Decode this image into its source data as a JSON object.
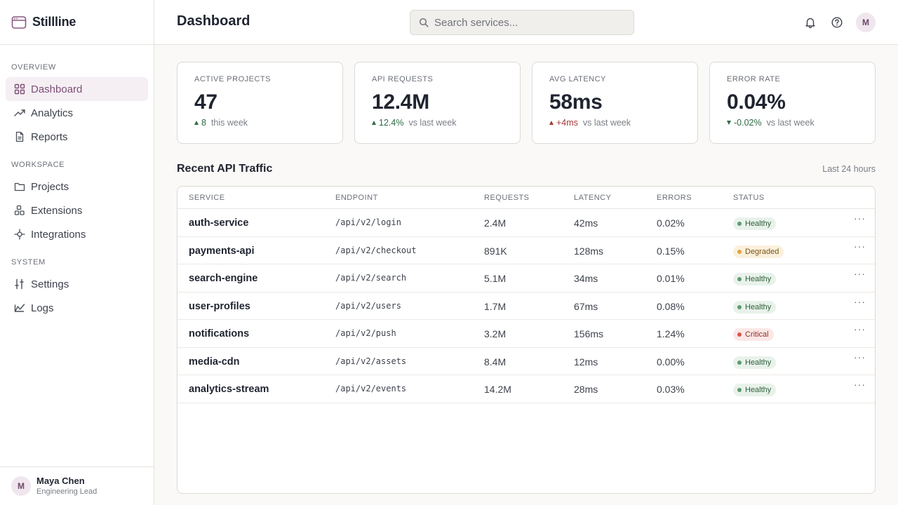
{
  "app": {
    "name": "Stillline"
  },
  "sidebar": {
    "sections": [
      {
        "title": "OVERVIEW",
        "items": [
          {
            "label": "Dashboard",
            "icon": "grid-icon",
            "active": true
          },
          {
            "label": "Analytics",
            "icon": "trend-icon"
          },
          {
            "label": "Reports",
            "icon": "document-icon"
          }
        ]
      },
      {
        "title": "WORKSPACE",
        "items": [
          {
            "label": "Projects",
            "icon": "folder-icon"
          },
          {
            "label": "Extensions",
            "icon": "blocks-icon"
          },
          {
            "label": "Integrations",
            "icon": "plug-icon"
          }
        ]
      },
      {
        "title": "SYSTEM",
        "items": [
          {
            "label": "Settings",
            "icon": "sliders-icon"
          },
          {
            "label": "Logs",
            "icon": "log-icon"
          }
        ]
      }
    ],
    "user": {
      "initial": "M",
      "name": "Maya Chen",
      "role": "Engineering Lead"
    }
  },
  "header": {
    "title": "Dashboard",
    "search_placeholder": "Search services...",
    "avatar_initial": "M"
  },
  "stats": [
    {
      "label": "ACTIVE PROJECTS",
      "value": "47",
      "delta": "8",
      "direction": "up",
      "tone": "pos",
      "sub": "this week"
    },
    {
      "label": "API REQUESTS",
      "value": "12.4M",
      "delta": "12.4%",
      "direction": "up",
      "tone": "pos",
      "sub": "vs last week"
    },
    {
      "label": "AVG LATENCY",
      "value": "58ms",
      "delta": "+4ms",
      "direction": "up",
      "tone": "neg",
      "sub": "vs last week"
    },
    {
      "label": "ERROR RATE",
      "value": "0.04%",
      "delta": "-0.02%",
      "direction": "down",
      "tone": "pos",
      "sub": "vs last week"
    }
  ],
  "traffic": {
    "title": "Recent API Traffic",
    "range": "Last 24 hours",
    "columns": [
      "SERVICE",
      "ENDPOINT",
      "REQUESTS",
      "LATENCY",
      "ERRORS",
      "STATUS"
    ],
    "rows": [
      {
        "service": "auth-service",
        "endpoint": "/api/v2/login",
        "requests": "2.4M",
        "latency": "42ms",
        "errors": "0.02%",
        "status": "Healthy"
      },
      {
        "service": "payments-api",
        "endpoint": "/api/v2/checkout",
        "requests": "891K",
        "latency": "128ms",
        "errors": "0.15%",
        "status": "Degraded"
      },
      {
        "service": "search-engine",
        "endpoint": "/api/v2/search",
        "requests": "5.1M",
        "latency": "34ms",
        "errors": "0.01%",
        "status": "Healthy"
      },
      {
        "service": "user-profiles",
        "endpoint": "/api/v2/users",
        "requests": "1.7M",
        "latency": "67ms",
        "errors": "0.08%",
        "status": "Healthy"
      },
      {
        "service": "notifications",
        "endpoint": "/api/v2/push",
        "requests": "3.2M",
        "latency": "156ms",
        "errors": "1.24%",
        "status": "Critical"
      },
      {
        "service": "media-cdn",
        "endpoint": "/api/v2/assets",
        "requests": "8.4M",
        "latency": "12ms",
        "errors": "0.00%",
        "status": "Healthy"
      },
      {
        "service": "analytics-stream",
        "endpoint": "/api/v2/events",
        "requests": "14.2M",
        "latency": "28ms",
        "errors": "0.03%",
        "status": "Healthy"
      }
    ],
    "more_label": "···"
  },
  "colors": {
    "accent": "#7d4f75",
    "healthy": "#5e9b6e",
    "degraded": "#e0a33a",
    "critical": "#d9534c"
  }
}
